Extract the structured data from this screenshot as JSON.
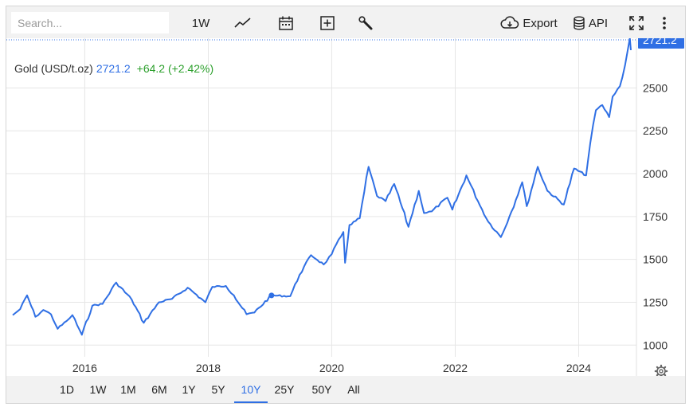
{
  "toolbar": {
    "search_placeholder": "Search...",
    "interval_label": "1W",
    "export_label": "Export",
    "api_label": "API",
    "icons": [
      "line-chart-icon",
      "calendar-icon",
      "plus-box-icon",
      "wrench-icon",
      "cloud-download-icon",
      "database-icon",
      "fullscreen-icon",
      "more-vertical-icon"
    ]
  },
  "legend": {
    "name": "Gold (USD/t.oz)",
    "value": "2721.2",
    "change": "+64.2 (+2.42%)"
  },
  "price_tag": "2721.2",
  "colors": {
    "line": "#2f6fe4",
    "up": "#2ca02c",
    "tag_bg": "#2f6fe4",
    "grid": "#e6e6e6"
  },
  "ranges": [
    "1D",
    "1W",
    "1M",
    "6M",
    "1Y",
    "5Y",
    "10Y",
    "25Y",
    "50Y",
    "All"
  ],
  "active_range": "10Y",
  "chart_data": {
    "type": "line",
    "title": "",
    "xlabel": "",
    "ylabel": "",
    "x_ticks": [
      "2016",
      "2018",
      "2020",
      "2022",
      "2024"
    ],
    "y_ticks": [
      1000,
      1250,
      1500,
      1750,
      2000,
      2250,
      2500
    ],
    "ylim": [
      820,
      2790
    ],
    "xlim": [
      "2014-11-01",
      "2024-11-05"
    ],
    "grid": true,
    "series": [
      {
        "name": "Gold (USD/t.oz)",
        "x": [
          "2014-11-01",
          "2014-12-15",
          "2015-01-25",
          "2015-03-15",
          "2015-05-01",
          "2015-06-15",
          "2015-07-25",
          "2015-09-15",
          "2015-10-20",
          "2015-12-15",
          "2016-02-15",
          "2016-04-15",
          "2016-07-05",
          "2016-10-05",
          "2016-12-15",
          "2017-03-15",
          "2017-06-01",
          "2017-09-01",
          "2017-12-15",
          "2018-01-25",
          "2018-04-15",
          "2018-06-01",
          "2018-08-15",
          "2018-10-01",
          "2019-01-10",
          "2019-05-01",
          "2019-06-25",
          "2019-09-01",
          "2019-11-15",
          "2020-01-01",
          "2020-03-10",
          "2020-03-20",
          "2020-04-15",
          "2020-06-15",
          "2020-08-06",
          "2020-09-25",
          "2020-11-15",
          "2021-01-05",
          "2021-03-30",
          "2021-05-30",
          "2021-06-30",
          "2021-08-15",
          "2021-11-15",
          "2021-12-15",
          "2022-03-08",
          "2022-05-15",
          "2022-07-15",
          "2022-09-28",
          "2022-11-30",
          "2023-02-01",
          "2023-02-28",
          "2023-05-04",
          "2023-06-30",
          "2023-10-05",
          "2023-12-05",
          "2024-02-14",
          "2024-03-10",
          "2024-04-12",
          "2024-05-20",
          "2024-06-30",
          "2024-07-20",
          "2024-09-01",
          "2024-10-01",
          "2024-10-30",
          "2024-11-05"
        ],
        "values": [
          1175,
          1210,
          1290,
          1165,
          1205,
          1180,
          1095,
          1140,
          1175,
          1060,
          1230,
          1240,
          1365,
          1265,
          1130,
          1250,
          1270,
          1335,
          1250,
          1340,
          1345,
          1290,
          1180,
          1190,
          1290,
          1285,
          1410,
          1525,
          1470,
          1530,
          1660,
          1480,
          1700,
          1740,
          2040,
          1870,
          1840,
          1940,
          1690,
          1900,
          1770,
          1780,
          1860,
          1790,
          1990,
          1840,
          1720,
          1630,
          1780,
          1950,
          1810,
          2040,
          1900,
          1820,
          2030,
          1990,
          2180,
          2370,
          2400,
          2330,
          2450,
          2510,
          2630,
          2790,
          2721
        ]
      }
    ]
  }
}
